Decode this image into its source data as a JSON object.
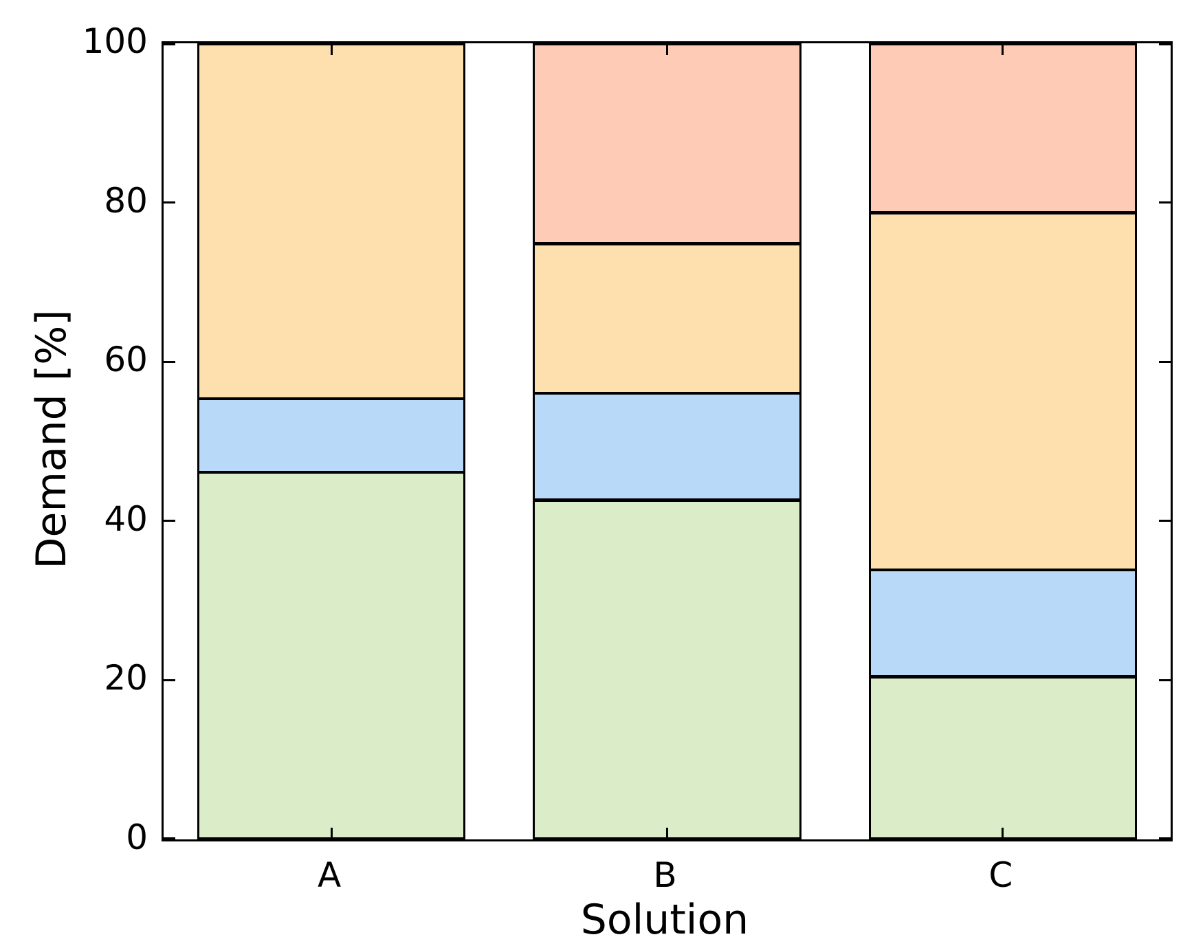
{
  "chart_data": {
    "type": "bar",
    "stacked": true,
    "orientation": "vertical",
    "title": "",
    "xlabel": "Solution",
    "ylabel": "Demand [%]",
    "categories": [
      "A",
      "B",
      "C"
    ],
    "series": [
      {
        "name": "green-segment",
        "color": "#dbecc8",
        "values": [
          46.2,
          42.7,
          20.5
        ]
      },
      {
        "name": "blue-segment",
        "color": "#b8d9f8",
        "values": [
          9.2,
          13.4,
          13.4
        ]
      },
      {
        "name": "orange-segment",
        "color": "#fedfae",
        "values": [
          44.6,
          18.8,
          44.9
        ]
      },
      {
        "name": "salmon-segment",
        "color": "#fecbb7",
        "values": [
          0,
          25.1,
          21.2
        ]
      }
    ],
    "ylim": [
      0,
      100
    ],
    "yticks": [
      0,
      20,
      40,
      60,
      80,
      100
    ],
    "ytick_labels": [
      "0",
      "20",
      "40",
      "60",
      "80",
      "100"
    ],
    "grid": false,
    "legend": null,
    "bar_edge_color": "#000000",
    "background_color": "#ffffff",
    "ticks_direction": "in",
    "spines": [
      "left",
      "right",
      "top",
      "bottom"
    ]
  }
}
